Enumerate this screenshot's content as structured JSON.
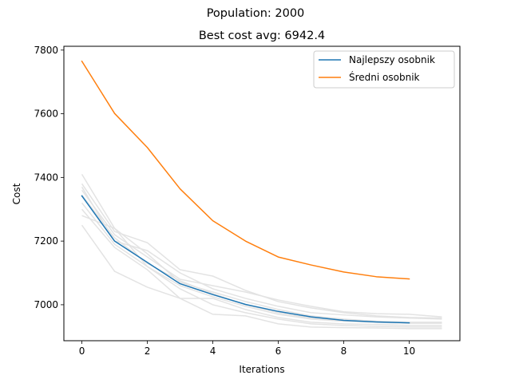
{
  "chart_data": {
    "type": "line",
    "suptitle": "Population: 2000",
    "title": "Best cost avg: 6942.4",
    "xlabel": "Iterations",
    "ylabel": "Cost",
    "xlim": [
      -0.55,
      11.55
    ],
    "ylim": [
      6887,
      7812
    ],
    "xticks": [
      0,
      2,
      4,
      6,
      8,
      10
    ],
    "yticks": [
      7000,
      7200,
      7400,
      7600,
      7800
    ],
    "legend_position": "top-right",
    "background_runs_color": "#e3e3e3",
    "background_runs": [
      [
        [
          0,
          7410
        ],
        [
          1,
          7240
        ],
        [
          2,
          7160
        ],
        [
          3,
          7070
        ],
        [
          4,
          7040
        ],
        [
          5,
          7010
        ],
        [
          6,
          6985
        ],
        [
          7,
          6965
        ],
        [
          8,
          6955
        ],
        [
          9,
          6948
        ],
        [
          10,
          6945
        ],
        [
          11,
          6945
        ]
      ],
      [
        [
          0,
          7380
        ],
        [
          1,
          7230
        ],
        [
          2,
          7195
        ],
        [
          3,
          7110
        ],
        [
          4,
          7090
        ],
        [
          5,
          7045
        ],
        [
          6,
          7010
        ],
        [
          7,
          6990
        ],
        [
          8,
          6975
        ],
        [
          9,
          6965
        ],
        [
          10,
          6960
        ],
        [
          11,
          6958
        ]
      ],
      [
        [
          0,
          7360
        ],
        [
          1,
          7220
        ],
        [
          2,
          7150
        ],
        [
          3,
          7080
        ],
        [
          4,
          7060
        ],
        [
          5,
          7040
        ],
        [
          6,
          7015
        ],
        [
          7,
          6995
        ],
        [
          8,
          6978
        ],
        [
          9,
          6972
        ],
        [
          10,
          6970
        ],
        [
          11,
          6962
        ]
      ],
      [
        [
          0,
          7345
        ],
        [
          1,
          7210
        ],
        [
          2,
          7130
        ],
        [
          3,
          7075
        ],
        [
          4,
          7035
        ],
        [
          5,
          7000
        ],
        [
          6,
          6975
        ],
        [
          7,
          6958
        ],
        [
          8,
          6950
        ],
        [
          9,
          6945
        ],
        [
          10,
          6942
        ],
        [
          11,
          6942
        ]
      ],
      [
        [
          0,
          7320
        ],
        [
          1,
          7190
        ],
        [
          2,
          7120
        ],
        [
          3,
          7060
        ],
        [
          4,
          7025
        ],
        [
          5,
          6995
        ],
        [
          6,
          6970
        ],
        [
          7,
          6955
        ],
        [
          8,
          6948
        ],
        [
          9,
          6945
        ],
        [
          10,
          6942
        ],
        [
          11,
          6942
        ]
      ],
      [
        [
          0,
          7300
        ],
        [
          1,
          7180
        ],
        [
          2,
          7110
        ],
        [
          3,
          7020
        ],
        [
          4,
          7020
        ],
        [
          5,
          6985
        ],
        [
          6,
          6960
        ],
        [
          7,
          6945
        ],
        [
          8,
          6940
        ],
        [
          9,
          6938
        ],
        [
          10,
          6935
        ],
        [
          11,
          6935
        ]
      ],
      [
        [
          0,
          7280
        ],
        [
          1,
          7240
        ],
        [
          2,
          7120
        ],
        [
          3,
          7050
        ],
        [
          4,
          7000
        ],
        [
          5,
          6975
        ],
        [
          6,
          6955
        ],
        [
          7,
          6940
        ],
        [
          8,
          6935
        ],
        [
          9,
          6932
        ],
        [
          10,
          6930
        ],
        [
          11,
          6930
        ]
      ],
      [
        [
          0,
          7250
        ],
        [
          1,
          7105
        ],
        [
          2,
          7055
        ],
        [
          3,
          7020
        ],
        [
          4,
          6970
        ],
        [
          5,
          6965
        ],
        [
          6,
          6940
        ],
        [
          7,
          6930
        ],
        [
          8,
          6928
        ],
        [
          9,
          6927
        ],
        [
          10,
          6925
        ],
        [
          11,
          6925
        ]
      ],
      [
        [
          0,
          7370
        ],
        [
          1,
          7200
        ],
        [
          2,
          7170
        ],
        [
          3,
          7100
        ],
        [
          4,
          7050
        ],
        [
          5,
          7020
        ],
        [
          6,
          6995
        ],
        [
          7,
          6975
        ],
        [
          8,
          6968
        ],
        [
          9,
          6962
        ],
        [
          10,
          6958
        ],
        [
          11,
          6955
        ]
      ]
    ],
    "series": [
      {
        "name": "Najlepszy osobnik",
        "color": "#1f77b4",
        "x": [
          0,
          1,
          2,
          3,
          4,
          5,
          6,
          7,
          8,
          9,
          10
        ],
        "values": [
          7342,
          7200,
          7133,
          7066,
          7032,
          7001,
          6979,
          6962,
          6951,
          6946,
          6943
        ]
      },
      {
        "name": "Średni osobnik",
        "color": "#ff7f0e",
        "x": [
          0,
          1,
          2,
          3,
          4,
          5,
          6,
          7,
          8,
          9,
          10
        ],
        "values": [
          7765,
          7601,
          7494,
          7364,
          7264,
          7200,
          7150,
          7125,
          7103,
          7088,
          7081
        ]
      }
    ]
  }
}
